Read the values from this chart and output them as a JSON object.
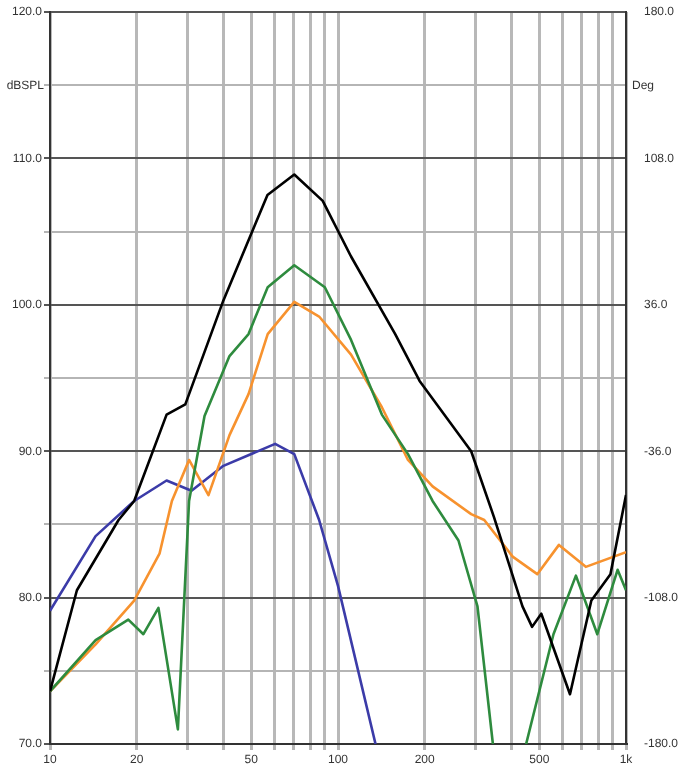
{
  "chart_data": {
    "type": "line",
    "ylabel": "dBSPL",
    "y2label": "Deg",
    "log": "x",
    "grid": true,
    "legend": false,
    "marker": "none",
    "line_style": "solid",
    "xlim": [
      10,
      1000
    ],
    "xticks": [
      {
        "value": 10,
        "label": "10"
      },
      {
        "value": 20,
        "label": "20"
      },
      {
        "value": 30,
        "label": null
      },
      {
        "value": 40,
        "label": null
      },
      {
        "value": 50,
        "label": "50"
      },
      {
        "value": 60,
        "label": null
      },
      {
        "value": 70,
        "label": null
      },
      {
        "value": 80,
        "label": null
      },
      {
        "value": 90,
        "label": null
      },
      {
        "value": 100,
        "label": "100"
      },
      {
        "value": 200,
        "label": "200"
      },
      {
        "value": 300,
        "label": null
      },
      {
        "value": 400,
        "label": null
      },
      {
        "value": 500,
        "label": "500"
      },
      {
        "value": 600,
        "label": null
      },
      {
        "value": 700,
        "label": null
      },
      {
        "value": 800,
        "label": null
      },
      {
        "value": 900,
        "label": null
      },
      {
        "value": 1000,
        "label": "1k"
      }
    ],
    "ylim": [
      70,
      120
    ],
    "yticks": [
      {
        "value": 70,
        "label": "70.0"
      },
      {
        "value": 75,
        "label": null
      },
      {
        "value": 80,
        "label": "80.0"
      },
      {
        "value": 85,
        "label": null
      },
      {
        "value": 90,
        "label": "90.0"
      },
      {
        "value": 95,
        "label": null
      },
      {
        "value": 100,
        "label": "100.0"
      },
      {
        "value": 105,
        "label": null
      },
      {
        "value": 110,
        "label": "110.0"
      },
      {
        "value": 115,
        "label": null
      },
      {
        "value": 120,
        "label": "120.0"
      }
    ],
    "y2lim": [
      -180,
      180
    ],
    "y2ticks": [
      {
        "value": -180,
        "label": "-180.0"
      },
      {
        "value": -108,
        "label": "-108.0"
      },
      {
        "value": -36,
        "label": "-36.0"
      },
      {
        "value": 36,
        "label": "36.0"
      },
      {
        "value": 108,
        "label": "108.0"
      },
      {
        "value": 180,
        "label": "180.0"
      }
    ],
    "series": [
      {
        "color": "#000000",
        "x": [
          10,
          12.4,
          17.3,
          19.6,
          25.4,
          29.5,
          40,
          56.9,
          70.5,
          88.5,
          111,
          158,
          192,
          290,
          348,
          437,
          472,
          508,
          639,
          758,
          883,
          1000
        ],
        "values": [
          73.6,
          80.5,
          85.3,
          86.6,
          92.5,
          93.2,
          100.3,
          107.5,
          108.9,
          107.1,
          103.3,
          98,
          94.8,
          90,
          85.5,
          79.4,
          78,
          78.9,
          73.4,
          79.8,
          81.6,
          87
        ]
      },
      {
        "color": "#2e8b3e",
        "x": [
          10,
          14.4,
          18.7,
          21.1,
          23.8,
          27.8,
          30.4,
          34.4,
          42,
          48.9,
          57,
          70.5,
          90,
          111,
          142,
          175,
          213,
          262,
          305,
          345,
          390,
          450,
          560,
          670,
          795,
          935,
          1000
        ],
        "values": [
          73.6,
          77.1,
          78.5,
          77.5,
          79.3,
          71,
          86.6,
          92.4,
          96.5,
          98,
          101.2,
          102.7,
          101.2,
          97.6,
          92.5,
          89.8,
          86.6,
          83.9,
          79.4,
          70,
          null,
          70,
          77.5,
          81.5,
          77.5,
          81.9,
          80.5
        ]
      },
      {
        "color": "#f7922e",
        "x": [
          10,
          14.4,
          19.6,
          24,
          26.5,
          30.4,
          35.5,
          42,
          48.9,
          57,
          70.5,
          86,
          111,
          142,
          175,
          213,
          290,
          322,
          404,
          492,
          585,
          725,
          1000
        ],
        "values": [
          73.6,
          76.8,
          79.8,
          83,
          86.6,
          89.4,
          87,
          91.1,
          93.9,
          98,
          100.2,
          99.2,
          96.6,
          93,
          89.4,
          87.6,
          85.7,
          85.3,
          82.8,
          81.6,
          83.6,
          82.1,
          83.1
        ]
      },
      {
        "color": "#3b3ba8",
        "x": [
          10,
          14.4,
          19.6,
          25.4,
          31,
          40,
          60.5,
          70.5,
          86,
          100,
          135
        ],
        "values": [
          79.1,
          84.2,
          86.6,
          88,
          87.3,
          89,
          90.5,
          89.8,
          85.3,
          80.8,
          70
        ]
      }
    ]
  }
}
